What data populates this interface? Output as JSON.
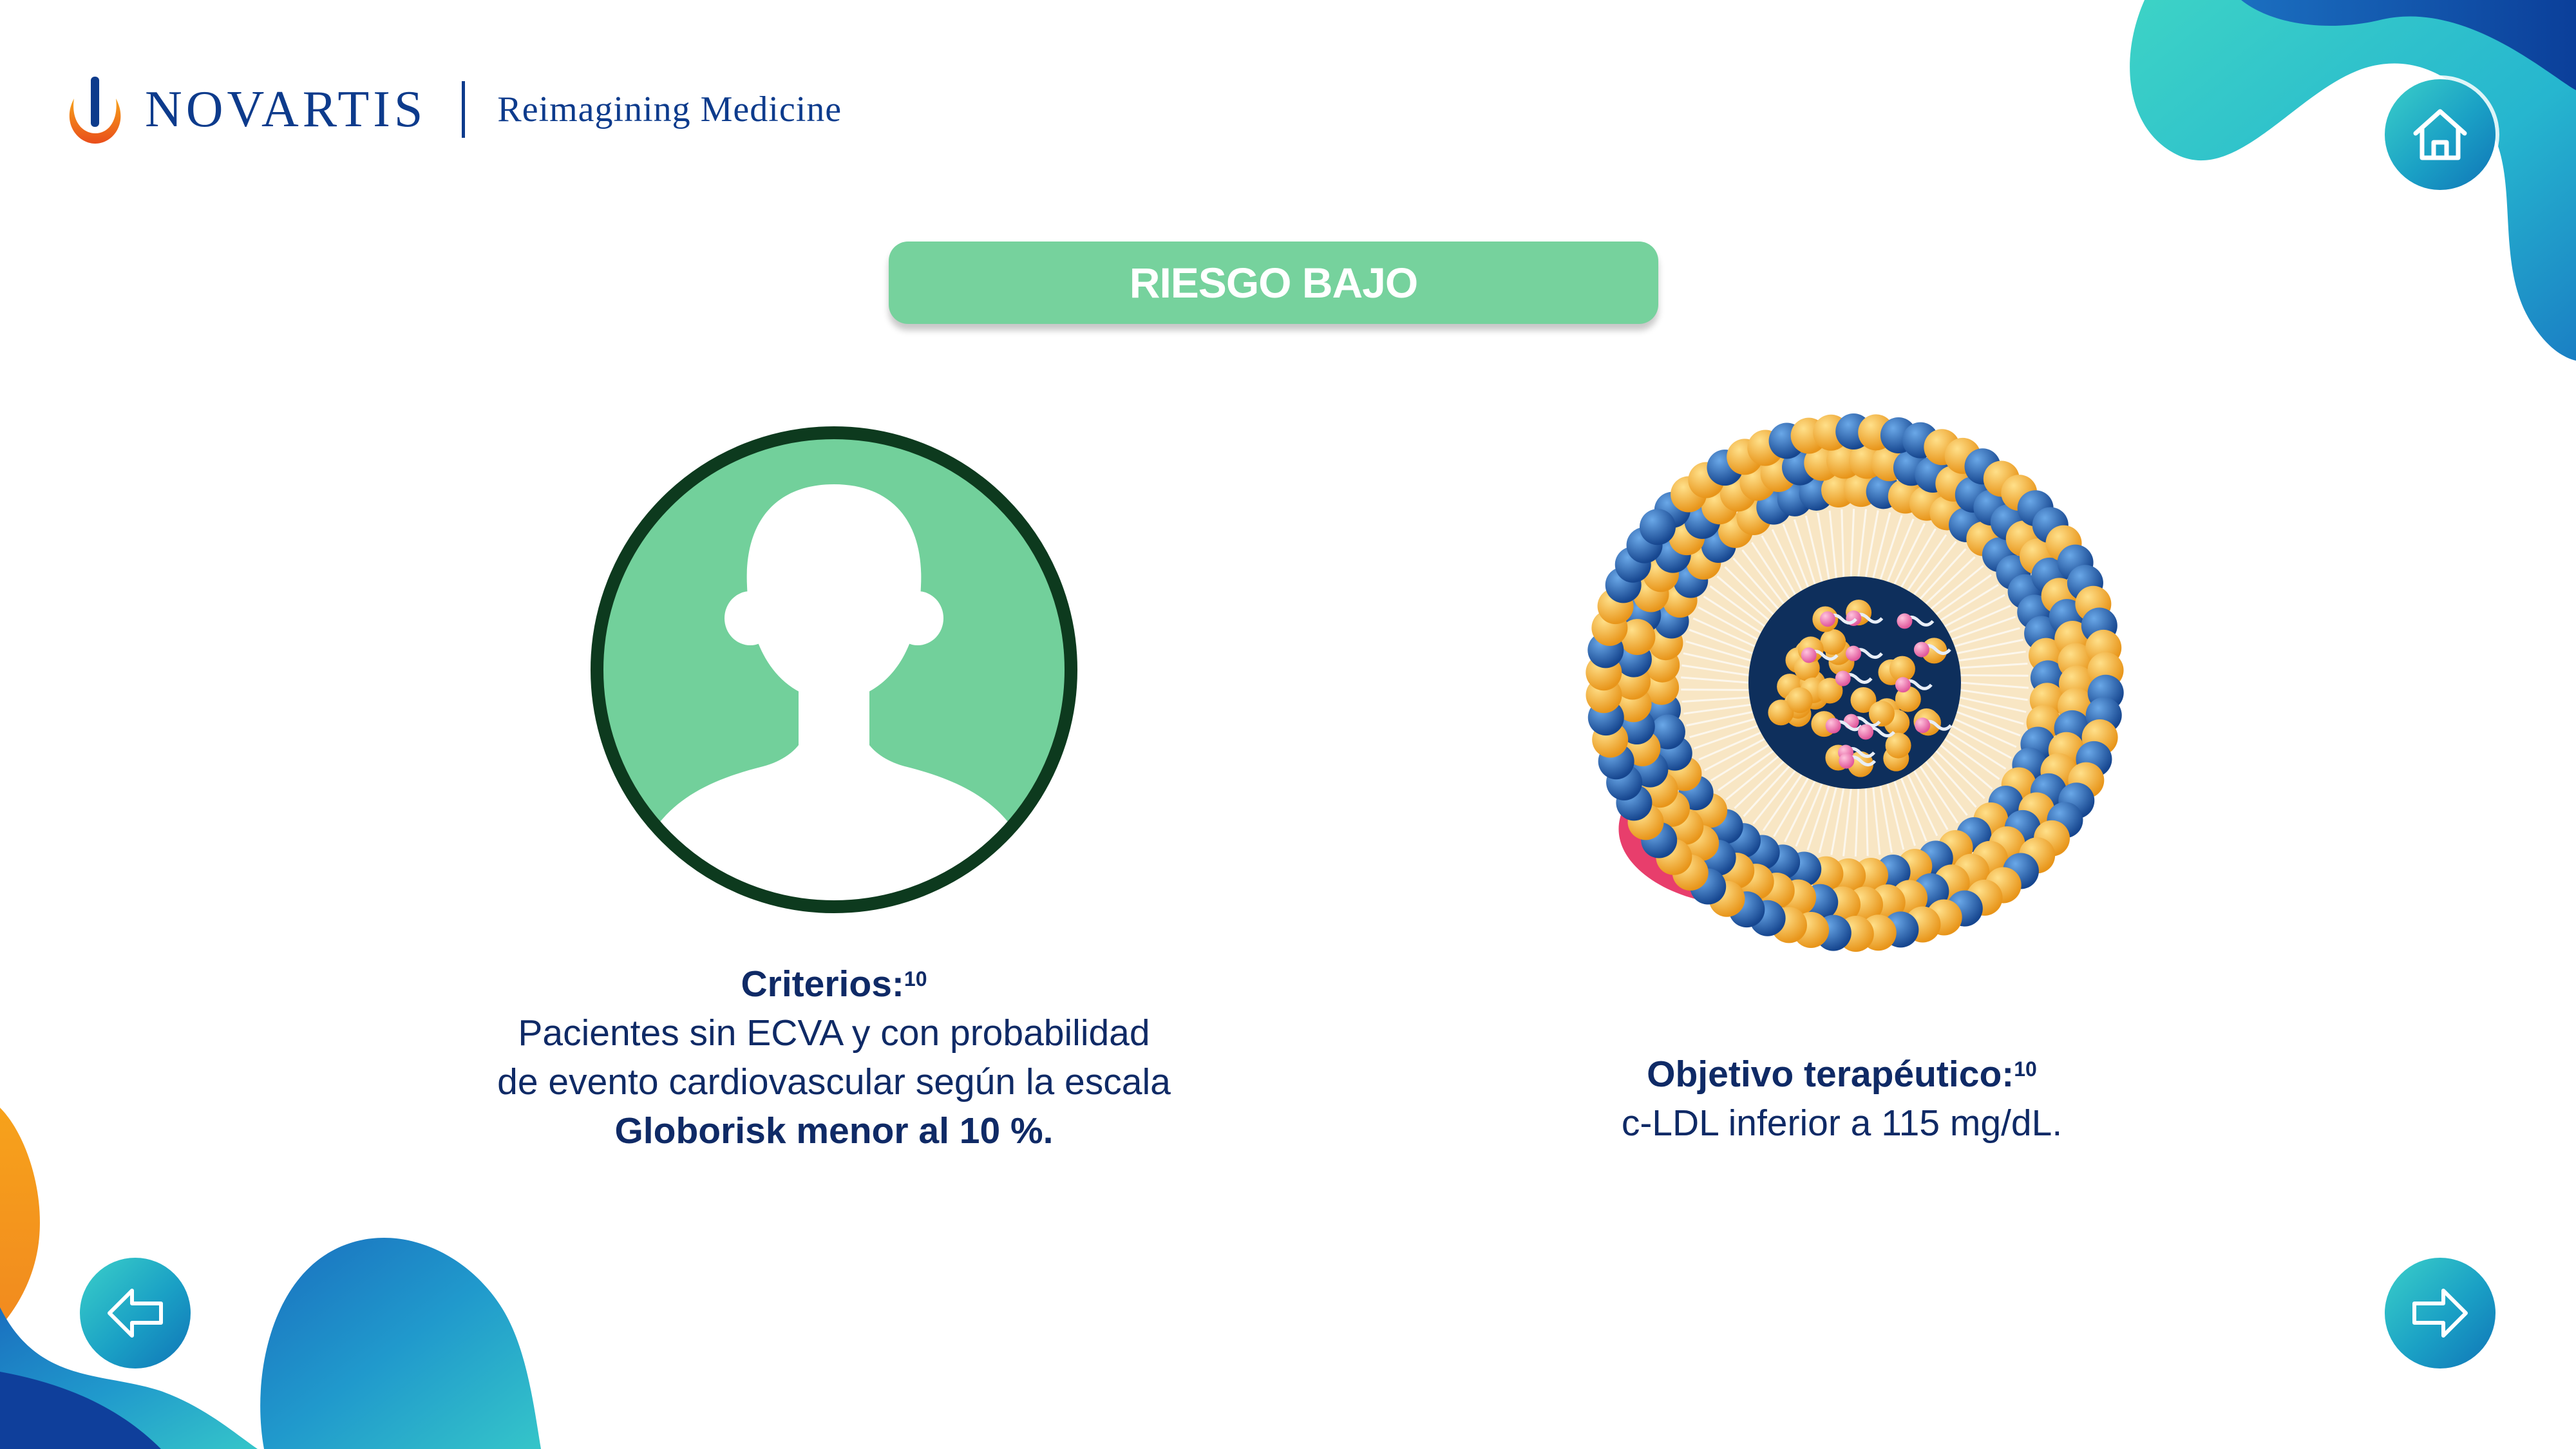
{
  "brand": {
    "name": "NOVARTIS",
    "tagline": "Reimagining Medicine"
  },
  "title": "RIESGO BAJO",
  "criteria": {
    "heading": "Criterios:",
    "ref": "10",
    "line1": "Pacientes sin ECVA y con probabilidad",
    "line2": "de evento cardiovascular según la escala",
    "line3_bold": "Globorisk menor al 10 %."
  },
  "objective": {
    "heading": "Objetivo terapéutico:",
    "ref": "10",
    "line1": "c-LDL inferior a 115 mg/dL."
  },
  "icons": {
    "home": "home-icon",
    "back": "arrow-left-icon",
    "next": "arrow-right-icon",
    "patient": "patient-silhouette-icon",
    "particle": "ldl-particle-illustration"
  },
  "colors": {
    "title_green": "#76d29d",
    "dark_green": "#0d3a1e",
    "navy": "#0f2a66",
    "brand_blue": "#0d3b8c",
    "teal": "#2cc0c8",
    "orange": "#f5a623"
  }
}
